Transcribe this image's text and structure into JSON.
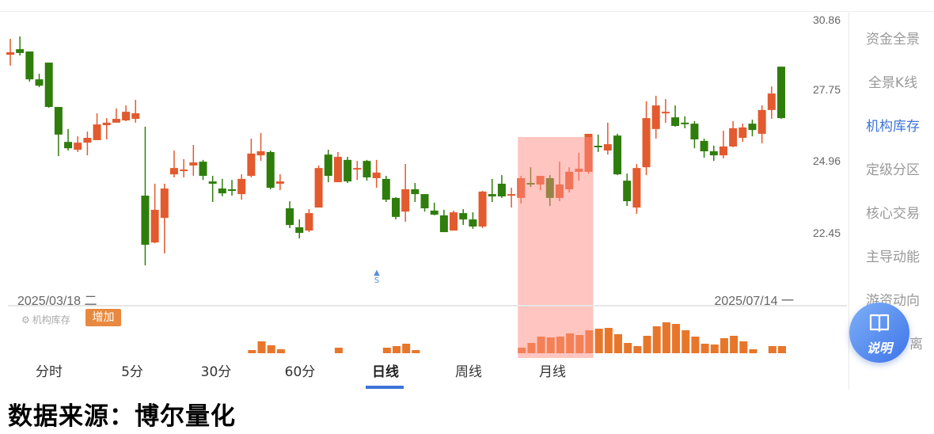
{
  "colors": {
    "up": "#e25a2e",
    "down": "#2f7d0c",
    "highlight": "#ff8c82",
    "volume": "#e8762a",
    "accent": "#3d74d8"
  },
  "chart_data": {
    "type": "candlestick",
    "x_start_label": "2025/03/18 二",
    "x_end_label": "2025/07/14 一",
    "y_ticks": [
      "30.86",
      "27.75",
      "24.96",
      "22.45"
    ],
    "ylim": [
      21.0,
      30.86
    ],
    "grid": false,
    "candles_ohlc": [
      [
        29.48,
        30.11,
        29.05,
        29.58
      ],
      [
        29.7,
        30.2,
        29.45,
        29.55
      ],
      [
        29.61,
        29.61,
        28.42,
        28.51
      ],
      [
        28.51,
        28.73,
        28.2,
        28.26
      ],
      [
        29.17,
        29.17,
        27.39,
        27.42
      ],
      [
        27.42,
        27.42,
        25.48,
        26.33
      ],
      [
        26.04,
        26.55,
        25.7,
        25.79
      ],
      [
        25.73,
        26.26,
        25.64,
        26.01
      ],
      [
        26.01,
        26.45,
        25.51,
        26.2
      ],
      [
        26.11,
        27.17,
        26.11,
        26.73
      ],
      [
        26.7,
        26.98,
        26.14,
        26.8
      ],
      [
        26.8,
        27.36,
        26.8,
        26.95
      ],
      [
        26.89,
        27.48,
        26.86,
        27.23
      ],
      [
        26.95,
        27.7,
        26.8,
        27.17
      ],
      [
        23.92,
        26.64,
        21.17,
        21.98
      ],
      [
        22.07,
        24.39,
        22.04,
        23.36
      ],
      [
        23.04,
        24.39,
        21.64,
        24.2
      ],
      [
        24.76,
        25.7,
        24.64,
        25.01
      ],
      [
        24.89,
        25.36,
        24.64,
        24.95
      ],
      [
        25.11,
        25.92,
        24.7,
        25.23
      ],
      [
        25.26,
        25.33,
        24.54,
        24.7
      ],
      [
        24.48,
        24.7,
        23.67,
        24.39
      ],
      [
        24.2,
        24.58,
        23.89,
        24.01
      ],
      [
        24.17,
        24.54,
        23.92,
        24.11
      ],
      [
        23.98,
        24.76,
        23.76,
        24.58
      ],
      [
        24.7,
        26.17,
        24.64,
        25.58
      ],
      [
        25.51,
        26.39,
        25.29,
        25.67
      ],
      [
        25.64,
        25.7,
        24.17,
        24.23
      ],
      [
        24.39,
        24.76,
        24.14,
        24.48
      ],
      [
        23.42,
        23.7,
        22.64,
        22.76
      ],
      [
        22.67,
        22.98,
        22.23,
        22.45
      ],
      [
        22.54,
        23.39,
        22.48,
        23.23
      ],
      [
        23.45,
        25.11,
        23.45,
        25.01
      ],
      [
        25.54,
        25.73,
        24.45,
        24.7
      ],
      [
        24.45,
        25.64,
        24.45,
        25.45
      ],
      [
        25.33,
        25.45,
        24.42,
        24.48
      ],
      [
        24.98,
        25.29,
        24.54,
        25.01
      ],
      [
        25.29,
        25.33,
        24.51,
        24.64
      ],
      [
        24.61,
        25.33,
        24.23,
        24.83
      ],
      [
        24.58,
        24.7,
        23.67,
        23.76
      ],
      [
        23.83,
        23.86,
        22.98,
        23.08
      ],
      [
        23.29,
        25.17,
        22.89,
        24.17
      ],
      [
        24.17,
        24.42,
        23.67,
        23.98
      ],
      [
        23.98,
        23.98,
        23.29,
        23.42
      ],
      [
        23.33,
        23.64,
        23.14,
        23.17
      ],
      [
        23.14,
        23.36,
        22.48,
        22.48
      ],
      [
        22.54,
        23.33,
        22.54,
        23.26
      ],
      [
        23.23,
        23.39,
        22.76,
        22.98
      ],
      [
        22.98,
        23.26,
        22.61,
        22.7
      ],
      [
        22.7,
        24.11,
        22.64,
        24.08
      ],
      [
        23.98,
        24.58,
        23.67,
        23.89
      ],
      [
        24.39,
        24.73,
        23.83,
        23.89
      ],
      [
        23.95,
        24.23,
        23.45,
        23.98
      ],
      [
        23.83,
        24.7,
        23.61,
        24.61
      ],
      [
        24.42,
        25.04,
        24.26,
        24.36
      ],
      [
        24.36,
        24.7,
        24.14,
        24.7
      ],
      [
        24.61,
        24.73,
        23.51,
        23.83
      ],
      [
        23.83,
        25.26,
        23.7,
        24.36
      ],
      [
        24.17,
        25.04,
        24.04,
        24.86
      ],
      [
        24.86,
        25.61,
        24.51,
        24.98
      ],
      [
        24.86,
        26.36,
        24.79,
        26.36
      ],
      [
        25.89,
        26.33,
        25.64,
        25.86
      ],
      [
        25.7,
        26.8,
        25.54,
        25.95
      ],
      [
        26.29,
        26.36,
        24.73,
        24.76
      ],
      [
        24.51,
        24.79,
        23.51,
        23.7
      ],
      [
        23.45,
        25.17,
        23.2,
        25.01
      ],
      [
        25.04,
        27.64,
        24.73,
        26.98
      ],
      [
        26.55,
        27.86,
        26.17,
        27.48
      ],
      [
        27.17,
        27.73,
        26.8,
        27.23
      ],
      [
        27.01,
        27.48,
        26.64,
        26.67
      ],
      [
        26.8,
        27.05,
        26.58,
        26.76
      ],
      [
        26.76,
        26.86,
        25.79,
        26.14
      ],
      [
        26.08,
        26.17,
        25.42,
        25.67
      ],
      [
        25.67,
        25.89,
        25.29,
        25.51
      ],
      [
        25.51,
        26.48,
        25.39,
        25.86
      ],
      [
        25.86,
        26.86,
        25.83,
        26.58
      ],
      [
        26.2,
        26.76,
        26.04,
        26.61
      ],
      [
        26.76,
        26.92,
        26.26,
        26.51
      ],
      [
        26.36,
        27.48,
        25.98,
        27.3
      ],
      [
        27.3,
        28.23,
        26.95,
        27.95
      ],
      [
        29.01,
        29.01,
        26.95,
        26.98
      ]
    ],
    "highlight_range": [
      53,
      60
    ],
    "signal_marker": {
      "index": 38,
      "label": "S"
    },
    "indicator": {
      "name": "机构库存",
      "state": "增加",
      "values": [
        0,
        0,
        0,
        0,
        0,
        0,
        0,
        0,
        0,
        0,
        0,
        0,
        0,
        0,
        0,
        0,
        0,
        0,
        0,
        0,
        0,
        0,
        0,
        0,
        0,
        4,
        15,
        10,
        5,
        0,
        0,
        0,
        0,
        0,
        7,
        0,
        0,
        0,
        0,
        7,
        9,
        12,
        4,
        0,
        0,
        0,
        0,
        0,
        0,
        0,
        0,
        0,
        0,
        7,
        13,
        21,
        20,
        21,
        25,
        23,
        29,
        31,
        32,
        24,
        13,
        9,
        22,
        34,
        39,
        37,
        29,
        21,
        12,
        11,
        19,
        22,
        15,
        5,
        0,
        9,
        9
      ]
    }
  },
  "legend": {
    "settings_icon": "gear-icon",
    "label": "机构库存",
    "badge": "增加"
  },
  "tabs": [
    {
      "label": "分时"
    },
    {
      "label": "5分"
    },
    {
      "label": "30分"
    },
    {
      "label": "60分"
    },
    {
      "label": "日线",
      "active": true
    },
    {
      "label": "周线"
    },
    {
      "label": "月线"
    }
  ],
  "sidebar": {
    "items": [
      {
        "label": "资金全景"
      },
      {
        "label": "全景K线"
      },
      {
        "label": "机构库存",
        "active": true
      },
      {
        "label": "定级分区"
      },
      {
        "label": "核心交易"
      },
      {
        "label": "主导动能"
      },
      {
        "label": "游资动向"
      },
      {
        "label": "离"
      }
    ]
  },
  "help_button": {
    "icon": "book-icon",
    "label": "说明"
  },
  "footer": "数据来源：博尔量化"
}
